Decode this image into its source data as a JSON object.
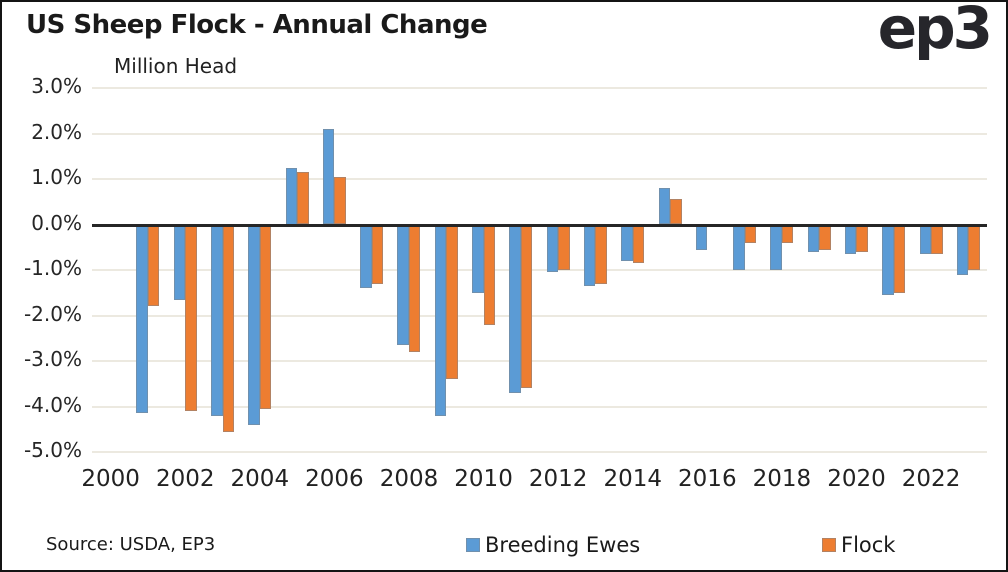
{
  "header": {
    "title": "US Sheep Flock - Annual Change",
    "subtitle": "Million Head",
    "logo_text": "ep3"
  },
  "footer": {
    "source": "Source: USDA, EP3"
  },
  "colors": {
    "breeding_ewes": "#5B9BD5",
    "flock": "#ED7D31",
    "gridline": "#ece9e0",
    "zero_line": "#262626",
    "text": "#1a1a1a"
  },
  "chart_data": {
    "type": "bar",
    "title": "US Sheep Flock - Annual Change",
    "subtitle": "Million Head",
    "categories": [
      2001,
      2002,
      2003,
      2004,
      2005,
      2006,
      2007,
      2008,
      2009,
      2010,
      2011,
      2012,
      2013,
      2014,
      2015,
      2016,
      2017,
      2018,
      2019,
      2020,
      2021,
      2022,
      2023
    ],
    "series": [
      {
        "name": "Breeding Ewes",
        "color": "#5B9BD5",
        "values": [
          -4.15,
          -1.65,
          -4.2,
          -4.4,
          1.25,
          2.1,
          -1.4,
          -2.65,
          -4.2,
          -1.5,
          -3.7,
          -1.05,
          -1.35,
          -0.8,
          0.8,
          -0.55,
          -1.0,
          -1.0,
          -0.6,
          -0.65,
          -1.55,
          -0.65,
          -1.1
        ]
      },
      {
        "name": "Flock",
        "color": "#ED7D31",
        "values": [
          -1.8,
          -4.1,
          -4.55,
          -4.05,
          1.15,
          1.05,
          -1.3,
          -2.8,
          -3.4,
          -2.2,
          -3.6,
          -1.0,
          -1.3,
          -0.85,
          0.55,
          0.0,
          -0.4,
          -0.4,
          -0.55,
          -0.6,
          -1.5,
          -0.65,
          -1.0
        ]
      }
    ],
    "ylim": [
      -5.0,
      3.0
    ],
    "ytick_step": 1.0,
    "ytick_labels": [
      "3.0%",
      "2.0%",
      "1.0%",
      "0.0%",
      "-1.0%",
      "-2.0%",
      "-3.0%",
      "-4.0%",
      "-5.0%"
    ],
    "xtick_labels": [
      "2000",
      "2002",
      "2004",
      "2006",
      "2008",
      "2010",
      "2012",
      "2014",
      "2016",
      "2018",
      "2020",
      "2022"
    ],
    "x_axis_start": 2000,
    "x_axis_end": 2023,
    "grid": true,
    "legend_position": "bottom"
  }
}
